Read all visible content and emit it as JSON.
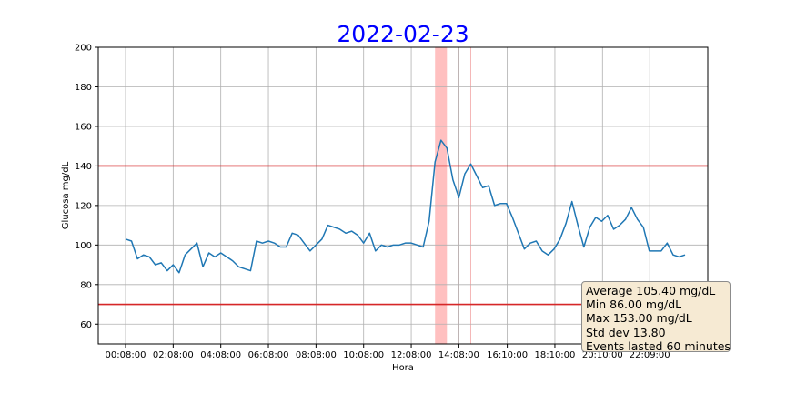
{
  "chart_data": {
    "type": "line",
    "title": "2022-02-23",
    "xlabel": "Hora",
    "ylabel": "Glucosa mg/dL",
    "ylim": [
      50,
      200
    ],
    "yticks": [
      "60",
      "80",
      "100",
      "120",
      "140",
      "160",
      "180",
      "200"
    ],
    "xticks": [
      "00:08:00",
      "02:08:00",
      "04:08:00",
      "06:08:00",
      "08:08:00",
      "10:08:00",
      "12:08:00",
      "14:08:00",
      "16:10:00",
      "18:10:00",
      "20:10:00",
      "22:09:00"
    ],
    "grid": true,
    "x_start": "00:08",
    "x_end": "23:54",
    "thresholds": [
      {
        "value": 140,
        "color": "#d62728"
      },
      {
        "value": 70,
        "color": "#d62728"
      }
    ],
    "event_band": {
      "start": "13:08",
      "end": "13:38",
      "color": "#ffc0c0"
    },
    "event_lines": [
      "14:08",
      "14:38"
    ],
    "series": [
      {
        "color": "#1f77b4",
        "points": [
          {
            "t": "00:08",
            "v": 103
          },
          {
            "t": "00:23",
            "v": 102
          },
          {
            "t": "00:38",
            "v": 93
          },
          {
            "t": "00:53",
            "v": 95
          },
          {
            "t": "01:08",
            "v": 94
          },
          {
            "t": "01:23",
            "v": 90
          },
          {
            "t": "01:38",
            "v": 91
          },
          {
            "t": "01:53",
            "v": 87
          },
          {
            "t": "02:08",
            "v": 90
          },
          {
            "t": "02:23",
            "v": 86
          },
          {
            "t": "02:38",
            "v": 95
          },
          {
            "t": "02:53",
            "v": 98
          },
          {
            "t": "03:08",
            "v": 101
          },
          {
            "t": "03:23",
            "v": 89
          },
          {
            "t": "03:38",
            "v": 96
          },
          {
            "t": "03:53",
            "v": 94
          },
          {
            "t": "04:08",
            "v": 96
          },
          {
            "t": "04:23",
            "v": 94
          },
          {
            "t": "04:38",
            "v": 92
          },
          {
            "t": "04:53",
            "v": 89
          },
          {
            "t": "05:08",
            "v": 88
          },
          {
            "t": "05:23",
            "v": 87
          },
          {
            "t": "05:38",
            "v": 102
          },
          {
            "t": "05:53",
            "v": 101
          },
          {
            "t": "06:08",
            "v": 102
          },
          {
            "t": "06:23",
            "v": 101
          },
          {
            "t": "06:38",
            "v": 99
          },
          {
            "t": "06:53",
            "v": 99
          },
          {
            "t": "07:08",
            "v": 106
          },
          {
            "t": "07:23",
            "v": 105
          },
          {
            "t": "07:38",
            "v": 101
          },
          {
            "t": "07:53",
            "v": 97
          },
          {
            "t": "08:08",
            "v": 100
          },
          {
            "t": "08:23",
            "v": 103
          },
          {
            "t": "08:38",
            "v": 110
          },
          {
            "t": "08:53",
            "v": 109
          },
          {
            "t": "09:08",
            "v": 108
          },
          {
            "t": "09:23",
            "v": 106
          },
          {
            "t": "09:38",
            "v": 107
          },
          {
            "t": "09:53",
            "v": 105
          },
          {
            "t": "10:08",
            "v": 101
          },
          {
            "t": "10:23",
            "v": 106
          },
          {
            "t": "10:38",
            "v": 97
          },
          {
            "t": "10:53",
            "v": 100
          },
          {
            "t": "11:08",
            "v": 99
          },
          {
            "t": "11:23",
            "v": 100
          },
          {
            "t": "11:38",
            "v": 100
          },
          {
            "t": "11:53",
            "v": 101
          },
          {
            "t": "12:08",
            "v": 101
          },
          {
            "t": "12:23",
            "v": 100
          },
          {
            "t": "12:38",
            "v": 99
          },
          {
            "t": "12:53",
            "v": 112
          },
          {
            "t": "13:08",
            "v": 142
          },
          {
            "t": "13:23",
            "v": 153
          },
          {
            "t": "13:38",
            "v": 149
          },
          {
            "t": "13:53",
            "v": 133
          },
          {
            "t": "14:08",
            "v": 124
          },
          {
            "t": "14:23",
            "v": 136
          },
          {
            "t": "14:38",
            "v": 141
          },
          {
            "t": "14:53",
            "v": 135
          },
          {
            "t": "15:08",
            "v": 129
          },
          {
            "t": "15:23",
            "v": 130
          },
          {
            "t": "15:38",
            "v": 120
          },
          {
            "t": "15:53",
            "v": 121
          },
          {
            "t": "16:08",
            "v": 121
          },
          {
            "t": "16:23",
            "v": 114
          },
          {
            "t": "16:38",
            "v": 106
          },
          {
            "t": "16:53",
            "v": 98
          },
          {
            "t": "17:08",
            "v": 101
          },
          {
            "t": "17:23",
            "v": 102
          },
          {
            "t": "17:38",
            "v": 97
          },
          {
            "t": "17:53",
            "v": 95
          },
          {
            "t": "18:08",
            "v": 98
          },
          {
            "t": "18:23",
            "v": 103
          },
          {
            "t": "18:38",
            "v": 111
          },
          {
            "t": "18:53",
            "v": 122
          },
          {
            "t": "19:08",
            "v": 110
          },
          {
            "t": "19:23",
            "v": 99
          },
          {
            "t": "19:38",
            "v": 109
          },
          {
            "t": "19:53",
            "v": 114
          },
          {
            "t": "20:08",
            "v": 112
          },
          {
            "t": "20:23",
            "v": 115
          },
          {
            "t": "20:38",
            "v": 108
          },
          {
            "t": "20:53",
            "v": 110
          },
          {
            "t": "21:08",
            "v": 113
          },
          {
            "t": "21:23",
            "v": 119
          },
          {
            "t": "21:38",
            "v": 113
          },
          {
            "t": "21:53",
            "v": 109
          },
          {
            "t": "22:08",
            "v": 97
          },
          {
            "t": "22:23",
            "v": 97
          },
          {
            "t": "22:38",
            "v": 97
          },
          {
            "t": "22:53",
            "v": 101
          },
          {
            "t": "23:08",
            "v": 95
          },
          {
            "t": "23:23",
            "v": 94
          },
          {
            "t": "23:38",
            "v": 95
          }
        ]
      }
    ]
  },
  "stats_box": {
    "average": "Average 105.40 mg/dL",
    "min": "Min 86.00 mg/dL",
    "max": "Max 153.00 mg/dL",
    "std": "Std dev 13.80",
    "events": "Events lasted 60  minutes"
  }
}
